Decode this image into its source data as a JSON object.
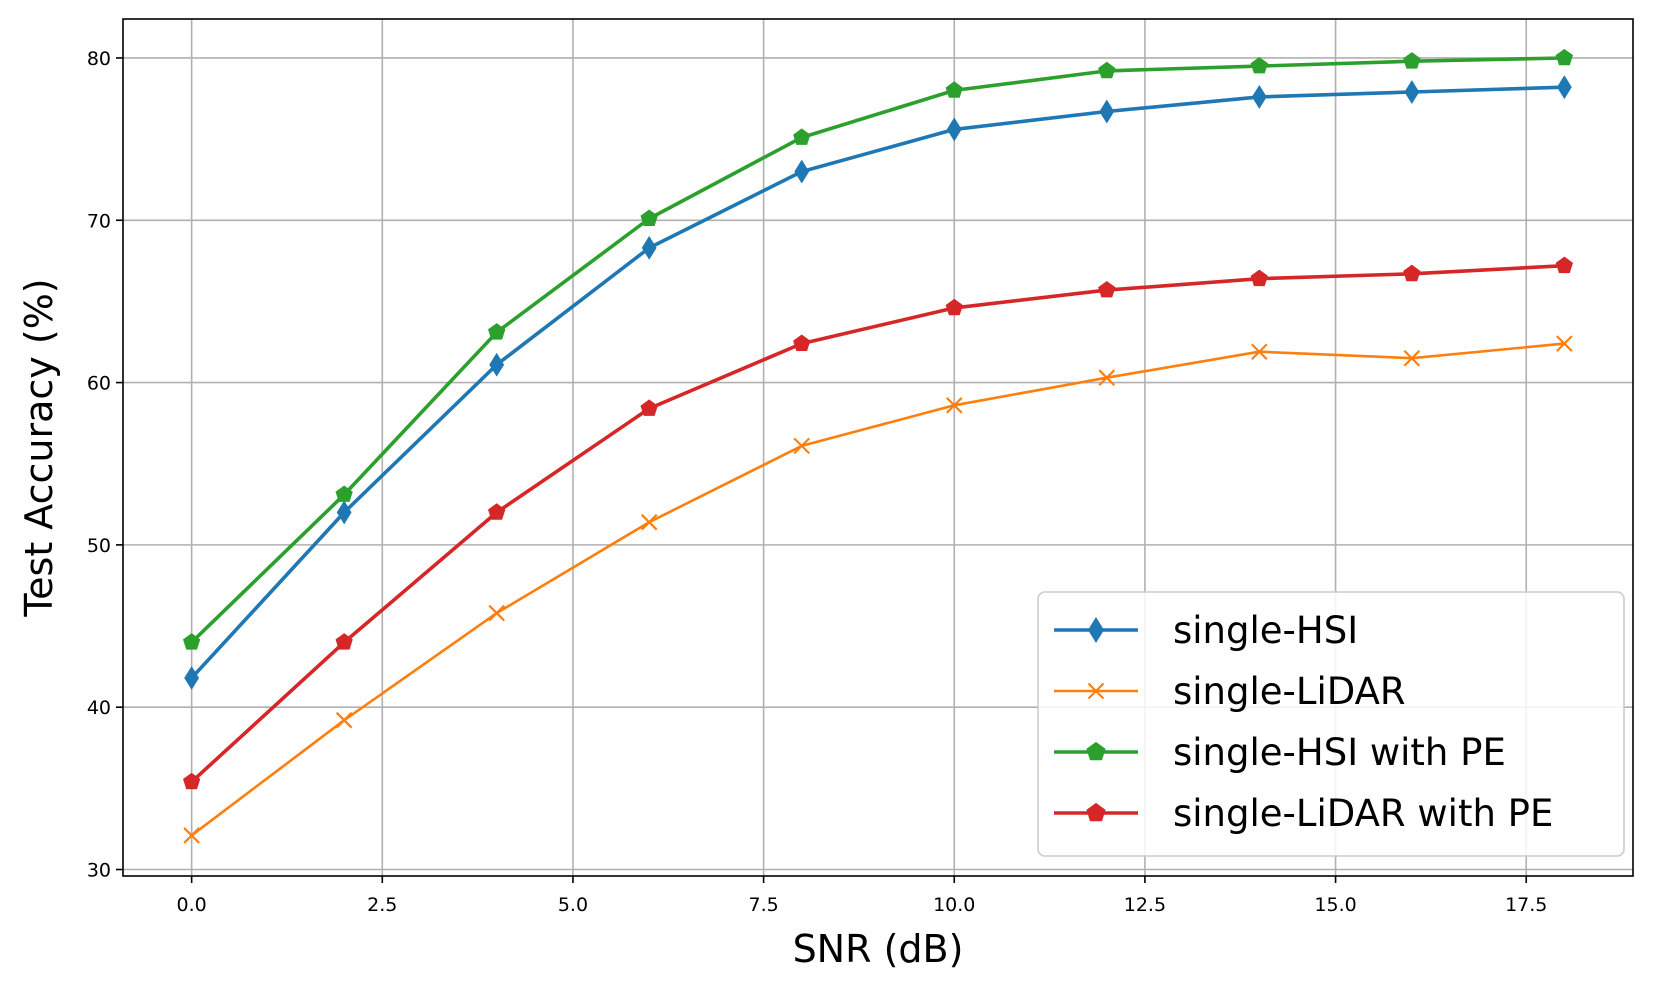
{
  "chart_data": {
    "type": "line",
    "title": "",
    "xlabel": "SNR (dB)",
    "ylabel": "Test Accuracy (%)",
    "xlim": [
      -0.9,
      18.9
    ],
    "ylim": [
      29.6,
      82.4
    ],
    "xticks": [
      0.0,
      2.5,
      5.0,
      7.5,
      10.0,
      12.5,
      15.0,
      17.5
    ],
    "xtick_labels": [
      "0.0",
      "2.5",
      "5.0",
      "7.5",
      "10.0",
      "12.5",
      "15.0",
      "17.5"
    ],
    "yticks": [
      30,
      40,
      50,
      60,
      70,
      80
    ],
    "ytick_labels": [
      "30",
      "40",
      "50",
      "60",
      "70",
      "80"
    ],
    "grid": true,
    "legend_position": "lower-right",
    "x": [
      0,
      2,
      4,
      6,
      8,
      10,
      12,
      14,
      16,
      18
    ],
    "series": [
      {
        "name": "single-HSI",
        "color": "#1f77b4",
        "marker": "diamond",
        "values": [
          41.8,
          52.0,
          61.1,
          68.3,
          73.0,
          75.6,
          76.7,
          77.6,
          77.9,
          78.2
        ]
      },
      {
        "name": "single-LiDAR",
        "color": "#ff7f0e",
        "marker": "x",
        "values": [
          32.1,
          39.2,
          45.8,
          51.4,
          56.1,
          58.6,
          60.3,
          61.9,
          61.5,
          62.4
        ]
      },
      {
        "name": "single-HSI with PE",
        "color": "#2ca02c",
        "marker": "pentagon",
        "values": [
          44.0,
          53.1,
          63.1,
          70.1,
          75.1,
          78.0,
          79.2,
          79.5,
          79.8,
          80.0
        ]
      },
      {
        "name": "single-LiDAR with PE",
        "color": "#d62728",
        "marker": "pentagon",
        "values": [
          35.4,
          44.0,
          52.0,
          58.4,
          62.4,
          64.6,
          65.7,
          66.4,
          66.7,
          67.2
        ]
      }
    ]
  }
}
